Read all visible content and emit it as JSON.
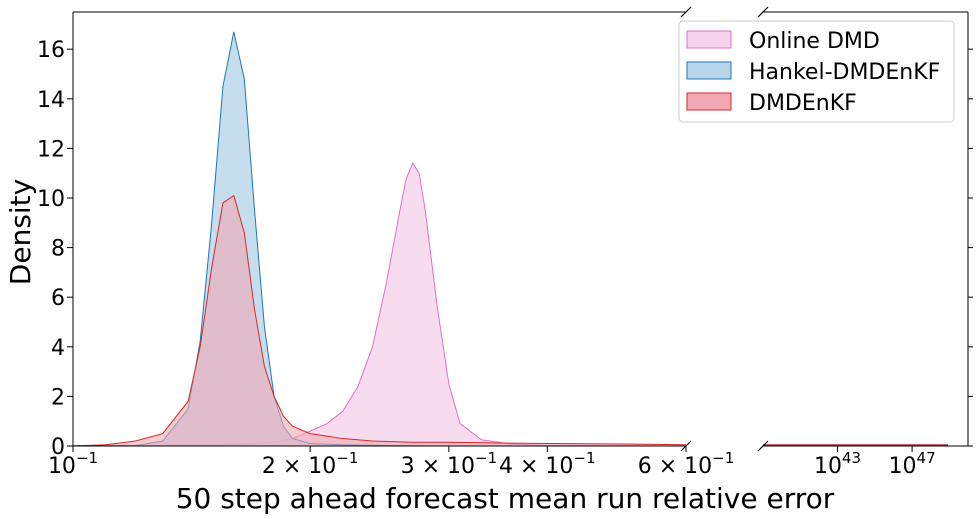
{
  "chart_data": {
    "type": "area",
    "xlabel": "50 step ahead forecast mean run relative error",
    "ylabel": "Density",
    "x_scale": "log (broken axis)",
    "ylim": [
      0,
      17.5
    ],
    "xlim_left": [
      0.1,
      0.6
    ],
    "xlim_right": [
      1e+39,
      1e+50
    ],
    "y_ticks": [
      "0",
      "2",
      "4",
      "6",
      "8",
      "10",
      "12",
      "14",
      "16"
    ],
    "x_ticks_left": [
      {
        "value": 0.1,
        "label": "10",
        "sup": "−1",
        "coef": ""
      },
      {
        "value": 0.2,
        "label": "10",
        "sup": "−1",
        "coef": "2 × "
      },
      {
        "value": 0.3,
        "label": "10",
        "sup": "−1",
        "coef": "3 × "
      },
      {
        "value": 0.4,
        "label": "10",
        "sup": "−1",
        "coef": "4 × "
      },
      {
        "value": 0.6,
        "label": "10",
        "sup": "−1",
        "coef": "6 × "
      }
    ],
    "x_ticks_right": [
      {
        "value": 1e+43,
        "label": "10",
        "sup": "43",
        "coef": ""
      },
      {
        "value": 1e+47,
        "label": "10",
        "sup": "47",
        "coef": ""
      }
    ],
    "legend_position": "top-right",
    "series": [
      {
        "name": "Online DMD",
        "fill": "#f5d3ec",
        "stroke": "#e070c8",
        "x": [
          0.1,
          0.13,
          0.15,
          0.17,
          0.18,
          0.19,
          0.2,
          0.21,
          0.22,
          0.23,
          0.24,
          0.25,
          0.26,
          0.265,
          0.27,
          0.275,
          0.28,
          0.29,
          0.3,
          0.31,
          0.33,
          0.36,
          0.4,
          0.5,
          0.6
        ],
        "y": [
          0.02,
          0.03,
          0.05,
          0.1,
          0.15,
          0.3,
          0.6,
          0.9,
          1.4,
          2.4,
          4.0,
          6.6,
          9.5,
          10.8,
          11.4,
          11.0,
          9.5,
          5.6,
          2.5,
          0.9,
          0.25,
          0.08,
          0.02,
          0.01,
          0.0
        ],
        "right_segment_y": 0.0
      },
      {
        "name": "Hankel-DMDEnKF",
        "fill": "#b8d4ea",
        "stroke": "#1f77b4",
        "x": [
          0.1,
          0.12,
          0.13,
          0.14,
          0.145,
          0.15,
          0.155,
          0.16,
          0.165,
          0.17,
          0.175,
          0.18,
          0.185,
          0.19,
          0.2,
          0.22,
          0.25,
          0.3,
          0.6
        ],
        "y": [
          0.0,
          0.02,
          0.2,
          1.5,
          4.2,
          9.0,
          14.5,
          16.7,
          14.8,
          9.5,
          4.8,
          2.0,
          0.8,
          0.3,
          0.1,
          0.05,
          0.02,
          0.0,
          0.0
        ],
        "right_segment_y": 0.0
      },
      {
        "name": "DMDEnKF",
        "fill": "#f2a8b4",
        "stroke": "#d62728",
        "x": [
          0.1,
          0.11,
          0.12,
          0.13,
          0.14,
          0.145,
          0.15,
          0.155,
          0.16,
          0.165,
          0.17,
          0.175,
          0.18,
          0.185,
          0.19,
          0.2,
          0.21,
          0.22,
          0.24,
          0.27,
          0.3,
          0.35,
          0.4,
          0.5,
          0.6
        ],
        "y": [
          0.0,
          0.05,
          0.2,
          0.5,
          1.8,
          4.0,
          7.2,
          9.8,
          10.1,
          8.6,
          5.5,
          3.2,
          2.0,
          1.2,
          0.8,
          0.5,
          0.4,
          0.3,
          0.2,
          0.15,
          0.15,
          0.12,
          0.1,
          0.08,
          0.05
        ],
        "right_segment_y": 0.0
      }
    ]
  }
}
